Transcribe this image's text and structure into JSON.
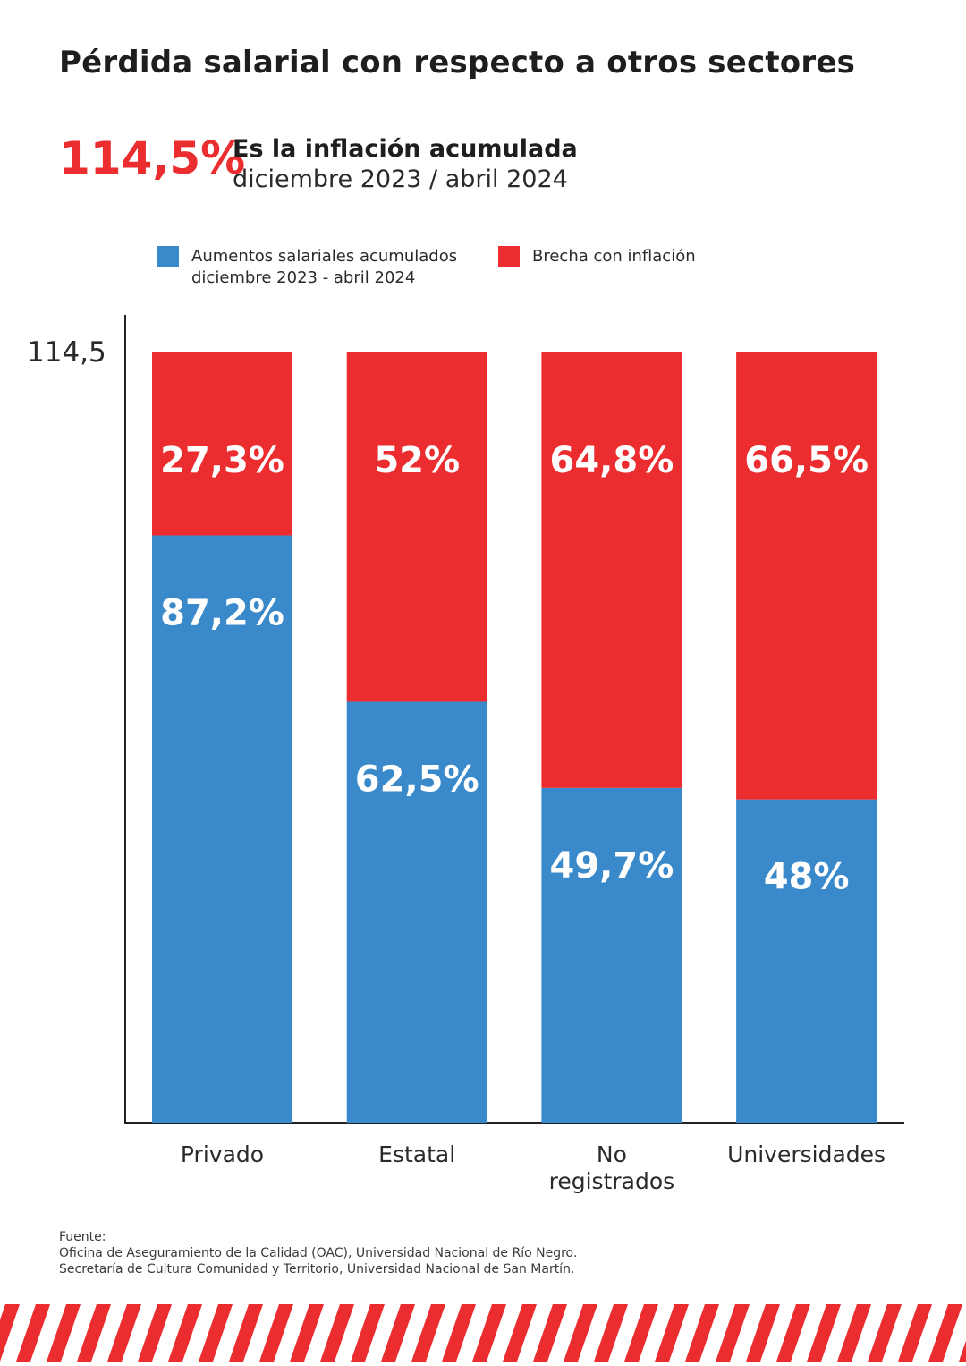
{
  "title": "Pérdida salarial con respecto a otros sectores",
  "highlight": {
    "value": "114,5%",
    "heading": "Es la inflación acumulada",
    "period": "diciembre 2023 / abril 2024"
  },
  "legend": {
    "salary_line1": "Aumentos salariales acumulados",
    "salary_line2": "diciembre 2023 - abril 2024",
    "gap": "Brecha con inflación"
  },
  "colors": {
    "blue": "#3a8acb",
    "red": "#ec2d2f",
    "text": "#1e1e1e"
  },
  "chart_data": {
    "type": "bar",
    "stacked": true,
    "y_tick_label": "114,5",
    "ylim": [
      0,
      114.5
    ],
    "grid": false,
    "legend_position": "top",
    "categories": [
      "Privado",
      "Estatal",
      "No registrados",
      "Universidades"
    ],
    "category_lines": [
      [
        "Privado"
      ],
      [
        "Estatal"
      ],
      [
        "No",
        "registrados"
      ],
      [
        "Universidades"
      ]
    ],
    "series": [
      {
        "name": "Aumentos salariales acumulados diciembre 2023 - abril 2024",
        "color": "#3a8acb",
        "values": [
          87.2,
          62.5,
          49.7,
          48
        ],
        "labels": [
          "87,2%",
          "62,5%",
          "49,7%",
          "48%"
        ]
      },
      {
        "name": "Brecha con inflación",
        "color": "#ec2d2f",
        "values": [
          27.3,
          52,
          64.8,
          66.5
        ],
        "labels": [
          "27,3%",
          "52%",
          "64,8%",
          "66,5%"
        ]
      }
    ]
  },
  "source": {
    "heading": "Fuente:",
    "line1": "Oficina de Aseguramiento de la Calidad (OAC), Universidad Nacional de Río Negro.",
    "line2": "Secretaría de Cultura Comunidad y Territorio, Universidad Nacional de San Martín."
  }
}
